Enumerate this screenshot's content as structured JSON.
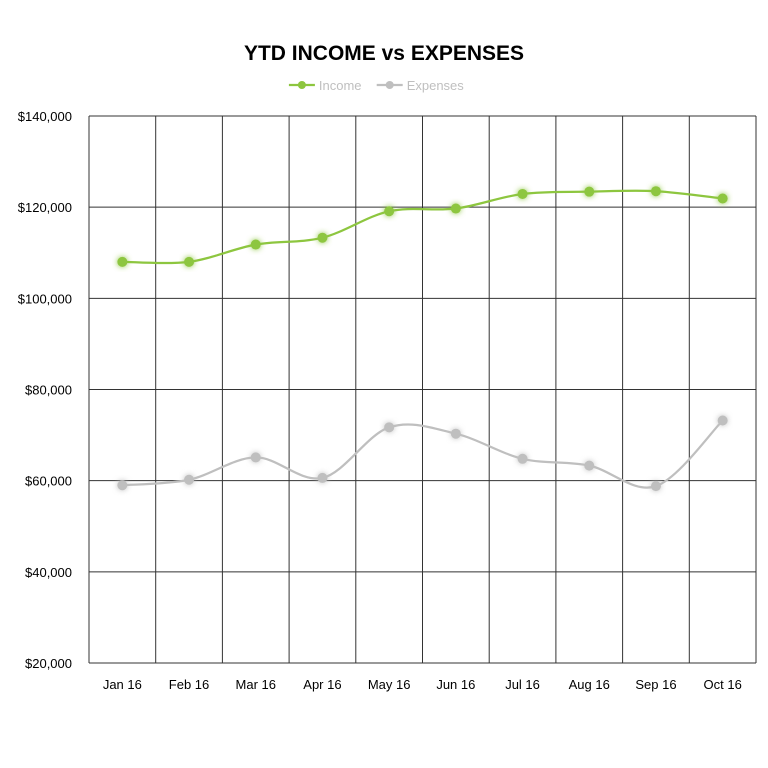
{
  "chart_data": {
    "type": "line",
    "title": "YTD INCOME vs EXPENSES",
    "xlabel": "",
    "ylabel": "",
    "categories": [
      "Jan 16",
      "Feb 16",
      "Mar 16",
      "Apr 16",
      "May 16",
      "Jun 16",
      "Jul 16",
      "Aug 16",
      "Sep 16",
      "Oct 16"
    ],
    "series": [
      {
        "name": "Income",
        "color": "#8dc63f",
        "values": [
          108000,
          108000,
          111800,
          113300,
          119100,
          119700,
          122900,
          123400,
          123500,
          121900
        ]
      },
      {
        "name": "Expenses",
        "color": "#bfbfbf",
        "values": [
          59000,
          60200,
          65100,
          60600,
          71700,
          70300,
          64800,
          63300,
          58800,
          73200
        ]
      }
    ],
    "ylim": [
      20000,
      140000
    ],
    "yticks": [
      20000,
      40000,
      60000,
      80000,
      100000,
      120000,
      140000
    ],
    "ytick_labels": [
      "$20,000",
      "$40,000",
      "$60,000",
      "$80,000",
      "$100,000",
      "$120,000",
      "$140,000"
    ],
    "grid": true,
    "legend_position": "top-center",
    "smooth_lines": true
  }
}
